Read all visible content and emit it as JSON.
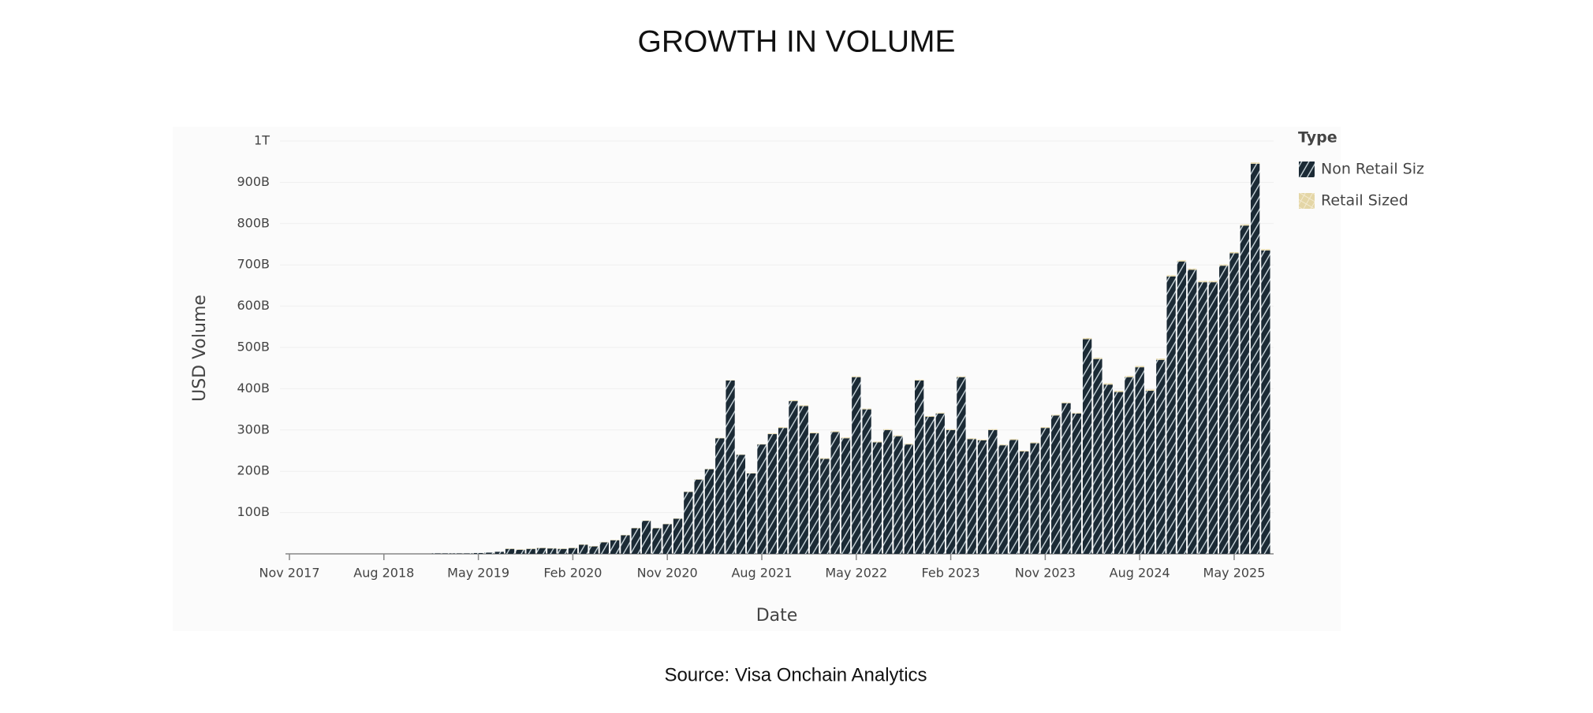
{
  "chart_data": {
    "type": "bar",
    "stacked": true,
    "title": "GROWTH IN VOLUME",
    "x_label": "Date",
    "y_label": "USD Volume",
    "legend_title": "Type",
    "legend_position": "right",
    "source": "Source: Visa Onchain Analytics",
    "categories": [
      "Nov 2017",
      null,
      null,
      null,
      null,
      null,
      null,
      null,
      null,
      "Aug 2018",
      null,
      null,
      null,
      null,
      null,
      null,
      null,
      null,
      "May 2019",
      null,
      null,
      null,
      null,
      null,
      null,
      null,
      null,
      "Feb 2020",
      null,
      null,
      null,
      null,
      null,
      null,
      null,
      null,
      "Nov 2020",
      null,
      null,
      null,
      null,
      null,
      null,
      null,
      null,
      "Aug 2021",
      null,
      null,
      null,
      null,
      null,
      null,
      null,
      null,
      "May 2022",
      null,
      null,
      null,
      null,
      null,
      null,
      null,
      null,
      "Feb 2023",
      null,
      null,
      null,
      null,
      null,
      null,
      null,
      null,
      "Nov 2023",
      null,
      null,
      null,
      null,
      null,
      null,
      null,
      null,
      "Aug 2024",
      null,
      null,
      null,
      null,
      null,
      null,
      null,
      null,
      "May 2025",
      null,
      null,
      null
    ],
    "series": [
      {
        "name": "Non Retail Siz",
        "color": "#1b2a35",
        "values": [
          0,
          0,
          0,
          0,
          0,
          0,
          0,
          0,
          0,
          0,
          0,
          0,
          0,
          0,
          1,
          1,
          1,
          1,
          2,
          3,
          5,
          12,
          10,
          12,
          14,
          13,
          12,
          14,
          22,
          18,
          28,
          33,
          45,
          62,
          80,
          62,
          72,
          85,
          150,
          180,
          205,
          280,
          420,
          240,
          195,
          265,
          290,
          305,
          370,
          358,
          292,
          230,
          295,
          280,
          428,
          350,
          270,
          300,
          285,
          265,
          420,
          332,
          340,
          300,
          428,
          278,
          275,
          300,
          263,
          276,
          248,
          268,
          305,
          335,
          365,
          340,
          520,
          472,
          410,
          392,
          428,
          452,
          395,
          470,
          672,
          708,
          688,
          658,
          658,
          698,
          728,
          795,
          945,
          735
        ]
      },
      {
        "name": "Retail Sized",
        "color": "#e4d6a6",
        "values": [
          0,
          0,
          0,
          0,
          0,
          0,
          0,
          0,
          0,
          0,
          0,
          0,
          0,
          0,
          0,
          0,
          0,
          0,
          0,
          0,
          0,
          1,
          1,
          1,
          1,
          1,
          1,
          1,
          1,
          1,
          1,
          1,
          1,
          1,
          1,
          1,
          1,
          1,
          1,
          1,
          1,
          1,
          1,
          1,
          1,
          1,
          2,
          2,
          2,
          2,
          2,
          2,
          2,
          2,
          2,
          2,
          2,
          2,
          2,
          2,
          2,
          2,
          2,
          2,
          2,
          2,
          2,
          2,
          2,
          2,
          2,
          2,
          2,
          2,
          2,
          2,
          3,
          3,
          3,
          3,
          3,
          3,
          3,
          3,
          3,
          3,
          3,
          3,
          3,
          3,
          3,
          3,
          3,
          3
        ]
      }
    ],
    "ylim": [
      0,
      1000
    ],
    "yticks": [
      {
        "value": 100,
        "label": "100B"
      },
      {
        "value": 200,
        "label": "200B"
      },
      {
        "value": 300,
        "label": "300B"
      },
      {
        "value": 400,
        "label": "400B"
      },
      {
        "value": 500,
        "label": "500B"
      },
      {
        "value": 600,
        "label": "600B"
      },
      {
        "value": 700,
        "label": "700B"
      },
      {
        "value": 800,
        "label": "800B"
      },
      {
        "value": 900,
        "label": "900B"
      },
      {
        "value": 1000,
        "label": "1T"
      }
    ],
    "grid": true
  }
}
